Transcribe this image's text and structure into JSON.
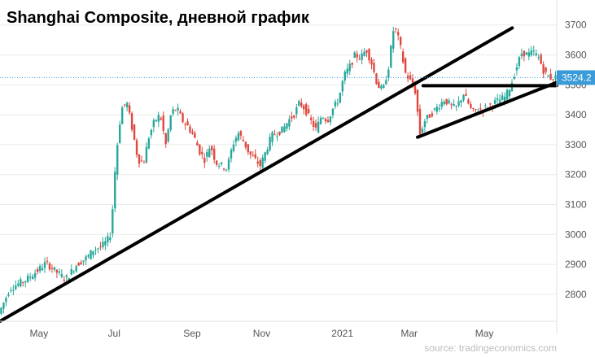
{
  "chart_data": {
    "type": "candlestick",
    "title": "Shanghai Composite, дневной график",
    "source": "source: tradingeconomics.com",
    "last_price_label": "3524.2",
    "last_price": 3524.2,
    "ylim": [
      2710,
      3740
    ],
    "y_ticks": [
      {
        "value": 3700,
        "label": "3700"
      },
      {
        "value": 3600,
        "label": "3600"
      },
      {
        "value": 3500,
        "label": "3500"
      },
      {
        "value": 3400,
        "label": "3400"
      },
      {
        "value": 3300,
        "label": "3300"
      },
      {
        "value": 3200,
        "label": "3200"
      },
      {
        "value": 3100,
        "label": "3100"
      },
      {
        "value": 3000,
        "label": "3000"
      },
      {
        "value": 2900,
        "label": "2900"
      },
      {
        "value": 2800,
        "label": "2800"
      }
    ],
    "x_ticks": [
      {
        "value": 0.07,
        "label": "May"
      },
      {
        "value": 0.205,
        "label": "Jul"
      },
      {
        "value": 0.345,
        "label": "Sep"
      },
      {
        "value": 0.47,
        "label": "Nov"
      },
      {
        "value": 0.615,
        "label": "2021"
      },
      {
        "value": 0.735,
        "label": "Mar"
      },
      {
        "value": 0.87,
        "label": "May"
      }
    ],
    "trendlines": [
      {
        "x1": 0.0,
        "y1": 2710,
        "x2": 0.92,
        "y2": 3690
      },
      {
        "x1": 0.75,
        "y1": 3325,
        "x2": 1.0,
        "y2": 3508
      },
      {
        "x1": 0.76,
        "y1": 3497,
        "x2": 1.0,
        "y2": 3497
      }
    ],
    "path_points": [
      [
        0.0,
        2735
      ],
      [
        0.02,
        2820
      ],
      [
        0.05,
        2850
      ],
      [
        0.07,
        2880
      ],
      [
        0.085,
        2905
      ],
      [
        0.1,
        2880
      ],
      [
        0.12,
        2850
      ],
      [
        0.14,
        2900
      ],
      [
        0.16,
        2925
      ],
      [
        0.17,
        2950
      ],
      [
        0.185,
        2960
      ],
      [
        0.195,
        2980
      ],
      [
        0.2,
        3000
      ],
      [
        0.205,
        3100
      ],
      [
        0.21,
        3250
      ],
      [
        0.22,
        3420
      ],
      [
        0.23,
        3440
      ],
      [
        0.24,
        3350
      ],
      [
        0.25,
        3250
      ],
      [
        0.26,
        3240
      ],
      [
        0.27,
        3330
      ],
      [
        0.28,
        3380
      ],
      [
        0.29,
        3400
      ],
      [
        0.3,
        3300
      ],
      [
        0.31,
        3410
      ],
      [
        0.32,
        3420
      ],
      [
        0.33,
        3380
      ],
      [
        0.34,
        3360
      ],
      [
        0.35,
        3330
      ],
      [
        0.36,
        3280
      ],
      [
        0.37,
        3250
      ],
      [
        0.38,
        3300
      ],
      [
        0.39,
        3240
      ],
      [
        0.41,
        3220
      ],
      [
        0.42,
        3300
      ],
      [
        0.43,
        3340
      ],
      [
        0.44,
        3310
      ],
      [
        0.45,
        3270
      ],
      [
        0.46,
        3250
      ],
      [
        0.47,
        3230
      ],
      [
        0.48,
        3280
      ],
      [
        0.49,
        3330
      ],
      [
        0.5,
        3340
      ],
      [
        0.51,
        3350
      ],
      [
        0.52,
        3380
      ],
      [
        0.53,
        3400
      ],
      [
        0.54,
        3440
      ],
      [
        0.55,
        3420
      ],
      [
        0.56,
        3380
      ],
      [
        0.57,
        3350
      ],
      [
        0.58,
        3400
      ],
      [
        0.59,
        3380
      ],
      [
        0.6,
        3420
      ],
      [
        0.61,
        3450
      ],
      [
        0.62,
        3530
      ],
      [
        0.63,
        3560
      ],
      [
        0.64,
        3600
      ],
      [
        0.65,
        3590
      ],
      [
        0.66,
        3620
      ],
      [
        0.67,
        3570
      ],
      [
        0.68,
        3500
      ],
      [
        0.69,
        3480
      ],
      [
        0.7,
        3560
      ],
      [
        0.71,
        3700
      ],
      [
        0.72,
        3640
      ],
      [
        0.73,
        3540
      ],
      [
        0.74,
        3510
      ],
      [
        0.75,
        3470
      ],
      [
        0.755,
        3330
      ],
      [
        0.765,
        3380
      ],
      [
        0.78,
        3410
      ],
      [
        0.8,
        3450
      ],
      [
        0.82,
        3420
      ],
      [
        0.835,
        3470
      ],
      [
        0.85,
        3410
      ],
      [
        0.87,
        3420
      ],
      [
        0.89,
        3440
      ],
      [
        0.91,
        3460
      ],
      [
        0.92,
        3500
      ],
      [
        0.93,
        3560
      ],
      [
        0.94,
        3610
      ],
      [
        0.95,
        3600
      ],
      [
        0.96,
        3610
      ],
      [
        0.97,
        3590
      ],
      [
        0.98,
        3540
      ],
      [
        0.99,
        3524
      ]
    ]
  },
  "colors": {
    "up": "#27a79a",
    "down": "#e0473d",
    "trendline": "#000000",
    "price_label_bg": "#3a9bd8",
    "price_line": "#3a9bd8",
    "grid": "#e9e9e9",
    "axis_text": "#555555",
    "source_text": "#bdbdbd"
  }
}
